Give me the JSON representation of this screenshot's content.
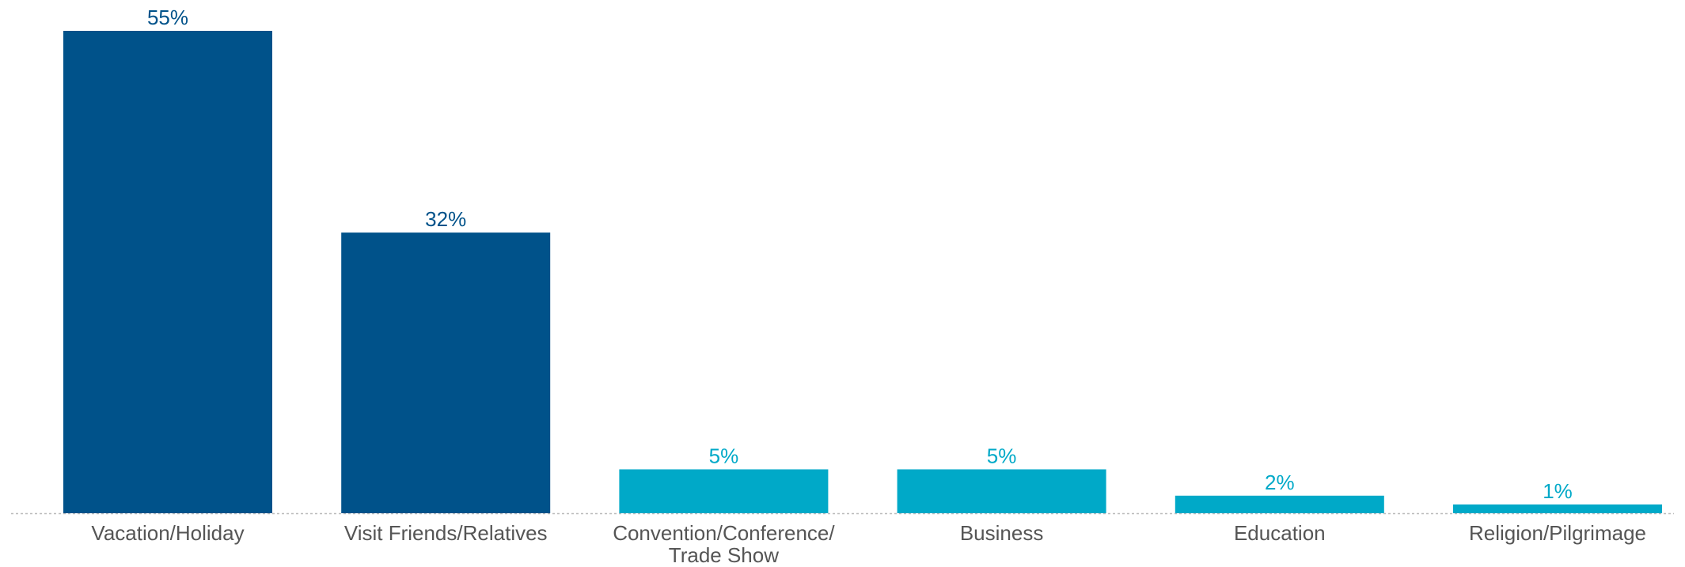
{
  "chart_data": {
    "type": "bar",
    "categories": [
      [
        "Vacation/Holiday"
      ],
      [
        "Visit Friends/Relatives"
      ],
      [
        "Convention/Conference/",
        "Trade Show"
      ],
      [
        "Business"
      ],
      [
        "Education"
      ],
      [
        "Religion/Pilgrimage"
      ]
    ],
    "values": [
      55,
      32,
      5,
      5,
      2,
      1
    ],
    "value_labels": [
      "55%",
      "32%",
      "5%",
      "5%",
      "2%",
      "1%"
    ],
    "bar_colors": [
      "#00528a",
      "#00528a",
      "#00a9c8",
      "#00a9c8",
      "#00a9c8",
      "#00a9c8"
    ],
    "unit": "%",
    "title": "",
    "xlabel": "",
    "ylabel": "",
    "ylim": [
      0,
      55
    ],
    "grid": false,
    "legend": "none"
  }
}
